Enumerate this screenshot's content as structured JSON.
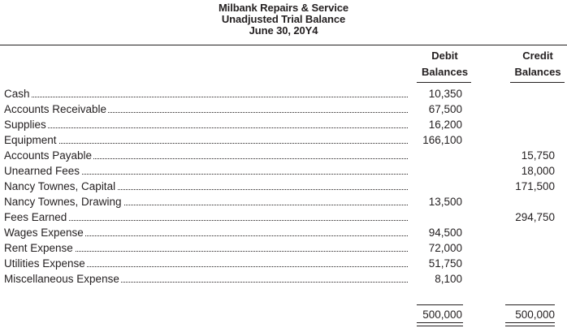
{
  "header": {
    "company": "Milbank Repairs & Service",
    "statement": "Unadjusted Trial Balance",
    "date": "June 30, 20Y4"
  },
  "columns": {
    "debit_line1": "Debit",
    "debit_line2": "Balances",
    "credit_line1": "Credit",
    "credit_line2": "Balances"
  },
  "accounts": [
    {
      "name": "Cash",
      "debit": "10,350",
      "credit": ""
    },
    {
      "name": "Accounts Receivable",
      "debit": "67,500",
      "credit": ""
    },
    {
      "name": "Supplies",
      "debit": "16,200",
      "credit": ""
    },
    {
      "name": "Equipment",
      "debit": "166,100",
      "credit": ""
    },
    {
      "name": "Accounts Payable",
      "debit": "",
      "credit": "15,750"
    },
    {
      "name": "Unearned Fees",
      "debit": "",
      "credit": "18,000"
    },
    {
      "name": "Nancy Townes, Capital",
      "debit": "",
      "credit": "171,500"
    },
    {
      "name": "Nancy Townes, Drawing",
      "debit": "13,500",
      "credit": ""
    },
    {
      "name": "Fees Earned",
      "debit": "",
      "credit": "294,750"
    },
    {
      "name": "Wages Expense",
      "debit": "94,500",
      "credit": ""
    },
    {
      "name": "Rent Expense",
      "debit": "72,000",
      "credit": ""
    },
    {
      "name": "Utilities Expense",
      "debit": "51,750",
      "credit": ""
    },
    {
      "name": "Miscellaneous Expense",
      "debit": "8,100",
      "credit": ""
    }
  ],
  "totals": {
    "debit": "500,000",
    "credit": "500,000"
  }
}
